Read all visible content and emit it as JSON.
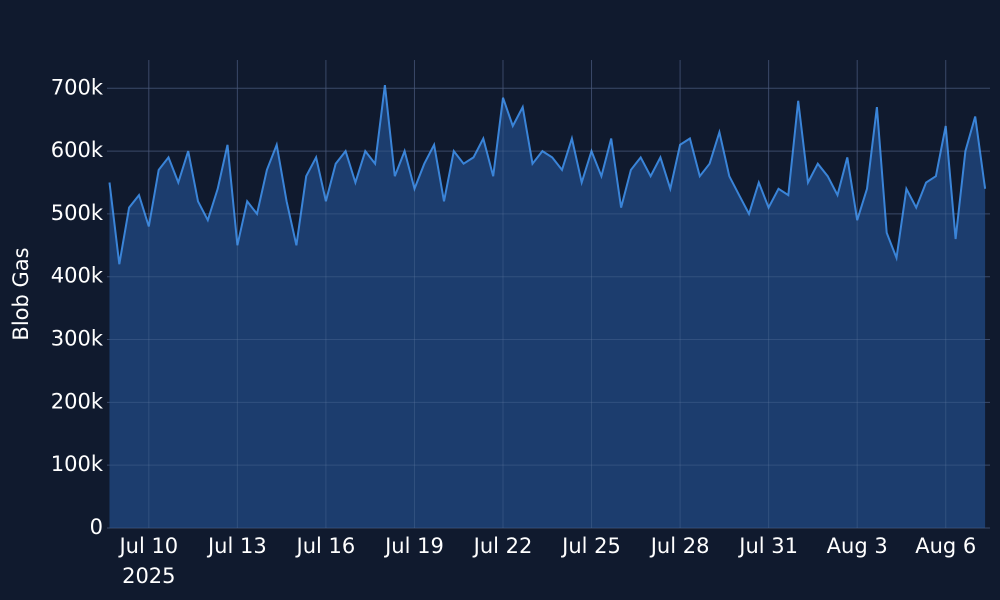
{
  "chart_data": {
    "type": "area",
    "y_label": "Blob Gas",
    "x": [
      "2025-07-08T16:00",
      "2025-07-09T00:00",
      "2025-07-09T08:00",
      "2025-07-09T16:00",
      "2025-07-10T00:00",
      "2025-07-10T08:00",
      "2025-07-10T16:00",
      "2025-07-11T00:00",
      "2025-07-11T08:00",
      "2025-07-11T16:00",
      "2025-07-12T00:00",
      "2025-07-12T08:00",
      "2025-07-12T16:00",
      "2025-07-13T00:00",
      "2025-07-13T08:00",
      "2025-07-13T16:00",
      "2025-07-14T00:00",
      "2025-07-14T08:00",
      "2025-07-14T16:00",
      "2025-07-15T00:00",
      "2025-07-15T08:00",
      "2025-07-15T16:00",
      "2025-07-16T00:00",
      "2025-07-16T08:00",
      "2025-07-16T16:00",
      "2025-07-17T00:00",
      "2025-07-17T08:00",
      "2025-07-17T16:00",
      "2025-07-18T00:00",
      "2025-07-18T08:00",
      "2025-07-18T16:00",
      "2025-07-19T00:00",
      "2025-07-19T08:00",
      "2025-07-19T16:00",
      "2025-07-20T00:00",
      "2025-07-20T08:00",
      "2025-07-20T16:00",
      "2025-07-21T00:00",
      "2025-07-21T08:00",
      "2025-07-21T16:00",
      "2025-07-22T00:00",
      "2025-07-22T08:00",
      "2025-07-22T16:00",
      "2025-07-23T00:00",
      "2025-07-23T08:00",
      "2025-07-23T16:00",
      "2025-07-24T00:00",
      "2025-07-24T08:00",
      "2025-07-24T16:00",
      "2025-07-25T00:00",
      "2025-07-25T08:00",
      "2025-07-25T16:00",
      "2025-07-26T00:00",
      "2025-07-26T08:00",
      "2025-07-26T16:00",
      "2025-07-27T00:00",
      "2025-07-27T08:00",
      "2025-07-27T16:00",
      "2025-07-28T00:00",
      "2025-07-28T08:00",
      "2025-07-28T16:00",
      "2025-07-29T00:00",
      "2025-07-29T08:00",
      "2025-07-29T16:00",
      "2025-07-30T00:00",
      "2025-07-30T08:00",
      "2025-07-30T16:00",
      "2025-07-31T00:00",
      "2025-07-31T08:00",
      "2025-07-31T16:00",
      "2025-08-01T00:00",
      "2025-08-01T08:00",
      "2025-08-01T16:00",
      "2025-08-02T00:00",
      "2025-08-02T08:00",
      "2025-08-02T16:00",
      "2025-08-03T00:00",
      "2025-08-03T08:00",
      "2025-08-03T16:00",
      "2025-08-04T00:00",
      "2025-08-04T08:00",
      "2025-08-04T16:00",
      "2025-08-05T00:00",
      "2025-08-05T08:00",
      "2025-08-05T16:00",
      "2025-08-06T00:00",
      "2025-08-06T08:00",
      "2025-08-06T16:00",
      "2025-08-07T00:00",
      "2025-08-07T08:00"
    ],
    "series": [
      {
        "name": "Blob Gas",
        "color": "#3a84d8",
        "fill": "#1f4479",
        "values": [
          550000,
          420000,
          510000,
          530000,
          480000,
          570000,
          590000,
          550000,
          600000,
          520000,
          490000,
          540000,
          610000,
          450000,
          520000,
          500000,
          570000,
          610000,
          520000,
          450000,
          560000,
          590000,
          520000,
          580000,
          600000,
          550000,
          600000,
          580000,
          705000,
          560000,
          600000,
          540000,
          580000,
          610000,
          520000,
          600000,
          580000,
          590000,
          620000,
          560000,
          685000,
          640000,
          670000,
          580000,
          600000,
          590000,
          570000,
          620000,
          550000,
          600000,
          560000,
          620000,
          510000,
          570000,
          590000,
          560000,
          590000,
          540000,
          610000,
          620000,
          560000,
          580000,
          630000,
          560000,
          530000,
          500000,
          550000,
          510000,
          540000,
          530000,
          680000,
          550000,
          580000,
          560000,
          530000,
          590000,
          490000,
          540000,
          670000,
          470000,
          430000,
          540000,
          510000,
          550000,
          560000,
          640000,
          460000,
          600000,
          655000,
          540000
        ]
      }
    ],
    "xlim": [
      "2025-07-08T14:00",
      "2025-08-07T12:00"
    ],
    "xticks": [
      {
        "value": "2025-07-10T00:00",
        "label": "Jul 10"
      },
      {
        "value": "2025-07-13T00:00",
        "label": "Jul 13"
      },
      {
        "value": "2025-07-16T00:00",
        "label": "Jul 16"
      },
      {
        "value": "2025-07-19T00:00",
        "label": "Jul 19"
      },
      {
        "value": "2025-07-22T00:00",
        "label": "Jul 22"
      },
      {
        "value": "2025-07-25T00:00",
        "label": "Jul 25"
      },
      {
        "value": "2025-07-28T00:00",
        "label": "Jul 28"
      },
      {
        "value": "2025-07-31T00:00",
        "label": "Jul 31"
      },
      {
        "value": "2025-08-03T00:00",
        "label": "Aug 3"
      },
      {
        "value": "2025-08-06T00:00",
        "label": "Aug 6"
      }
    ],
    "x_year_label": "2025",
    "ylim": [
      0,
      745000
    ],
    "yticks": [
      0,
      {
        "value": 100000,
        "label": "100k"
      },
      {
        "value": 200000,
        "label": "200k"
      },
      {
        "value": 300000,
        "label": "300k"
      },
      {
        "value": 400000,
        "label": "400k"
      },
      {
        "value": 500000,
        "label": "500k"
      },
      {
        "value": 600000,
        "label": "600k"
      },
      {
        "value": 700000,
        "label": "700k"
      }
    ],
    "grid": true
  }
}
